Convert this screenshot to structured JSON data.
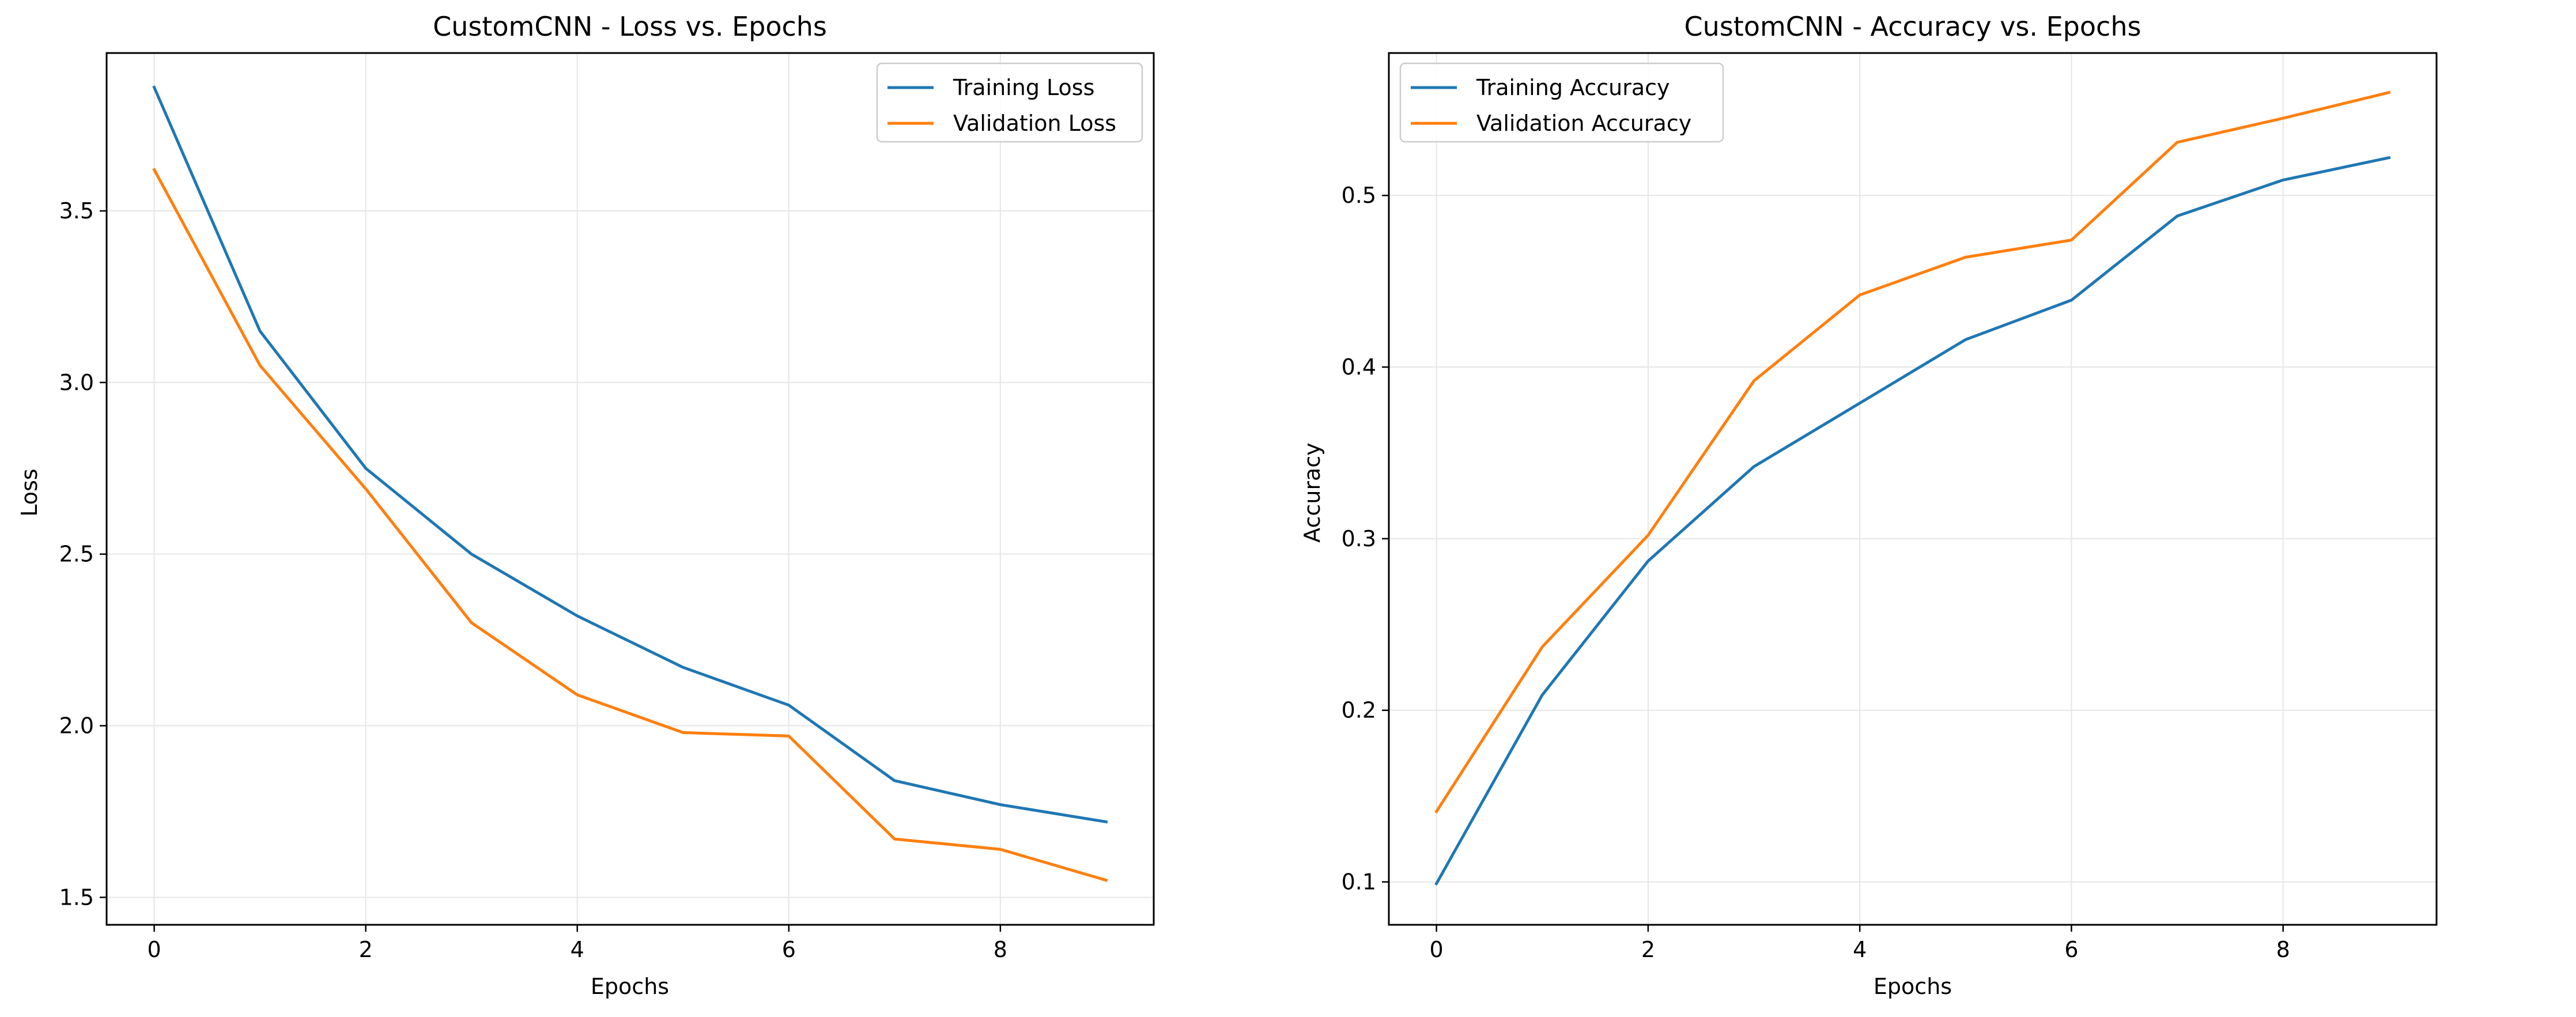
{
  "chart_data": [
    {
      "type": "line",
      "title": "CustomCNN - Loss vs. Epochs",
      "xlabel": "Epochs",
      "ylabel": "Loss",
      "x": [
        0,
        1,
        2,
        3,
        4,
        5,
        6,
        7,
        8,
        9
      ],
      "xlim": [
        -0.45,
        9.45
      ],
      "ylim": [
        1.42,
        3.96
      ],
      "xticks": [
        0,
        2,
        4,
        6,
        8
      ],
      "yticks": [
        1.5,
        2.0,
        2.5,
        3.0,
        3.5
      ],
      "ytick_labels": [
        "1.5",
        "2.0",
        "2.5",
        "3.0",
        "3.5"
      ],
      "grid": true,
      "legend_position": "top-right",
      "series": [
        {
          "name": "Training Loss",
          "color": "#1f77b4",
          "values": [
            3.86,
            3.15,
            2.75,
            2.5,
            2.32,
            2.17,
            2.06,
            1.84,
            1.77,
            1.72
          ]
        },
        {
          "name": "Validation Loss",
          "color": "#ff7f0e",
          "values": [
            3.62,
            3.05,
            2.69,
            2.3,
            2.09,
            1.98,
            1.97,
            1.67,
            1.64,
            1.55
          ]
        }
      ]
    },
    {
      "type": "line",
      "title": "CustomCNN - Accuracy vs. Epochs",
      "xlabel": "Epochs",
      "ylabel": "Accuracy",
      "x": [
        0,
        1,
        2,
        3,
        4,
        5,
        6,
        7,
        8,
        9
      ],
      "xlim": [
        -0.45,
        9.45
      ],
      "ylim": [
        0.075,
        0.583
      ],
      "xticks": [
        0,
        2,
        4,
        6,
        8
      ],
      "yticks": [
        0.1,
        0.2,
        0.3,
        0.4,
        0.5
      ],
      "ytick_labels": [
        "0.1",
        "0.2",
        "0.3",
        "0.4",
        "0.5"
      ],
      "grid": true,
      "legend_position": "top-left",
      "series": [
        {
          "name": "Training Accuracy",
          "color": "#1f77b4",
          "values": [
            0.099,
            0.209,
            0.287,
            0.342,
            0.379,
            0.416,
            0.439,
            0.488,
            0.509,
            0.522
          ]
        },
        {
          "name": "Validation Accuracy",
          "color": "#ff7f0e",
          "values": [
            0.141,
            0.237,
            0.302,
            0.392,
            0.442,
            0.464,
            0.474,
            0.531,
            0.545,
            0.56
          ]
        }
      ]
    }
  ]
}
